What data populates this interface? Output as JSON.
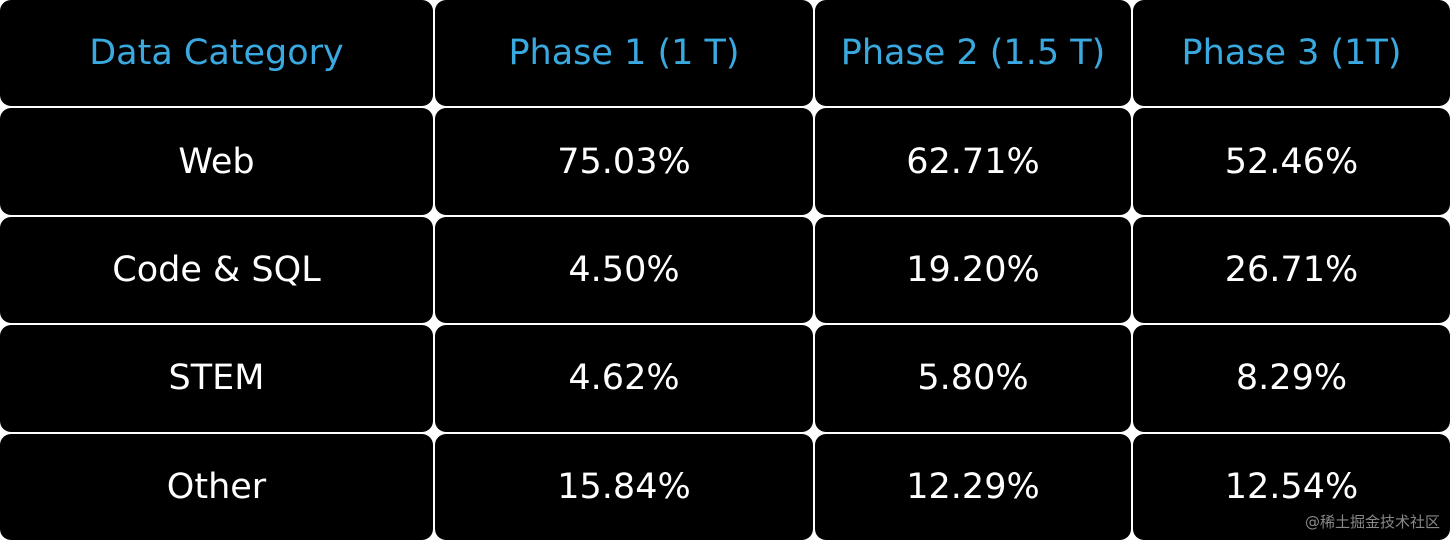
{
  "table": {
    "header": [
      "Data Category",
      "Phase 1 (1 T)",
      "Phase 2 (1.5 T)",
      "Phase 3 (1T)"
    ],
    "rows": [
      [
        "Web",
        "75.03%",
        "62.71%",
        "52.46%"
      ],
      [
        "Code & SQL",
        "4.50%",
        "19.20%",
        "26.71%"
      ],
      [
        "STEM",
        "4.62%",
        "5.80%",
        "8.29%"
      ],
      [
        "Other",
        "15.84%",
        "12.29%",
        "12.54%"
      ]
    ]
  },
  "watermark": "@稀土掘金技术社区"
}
